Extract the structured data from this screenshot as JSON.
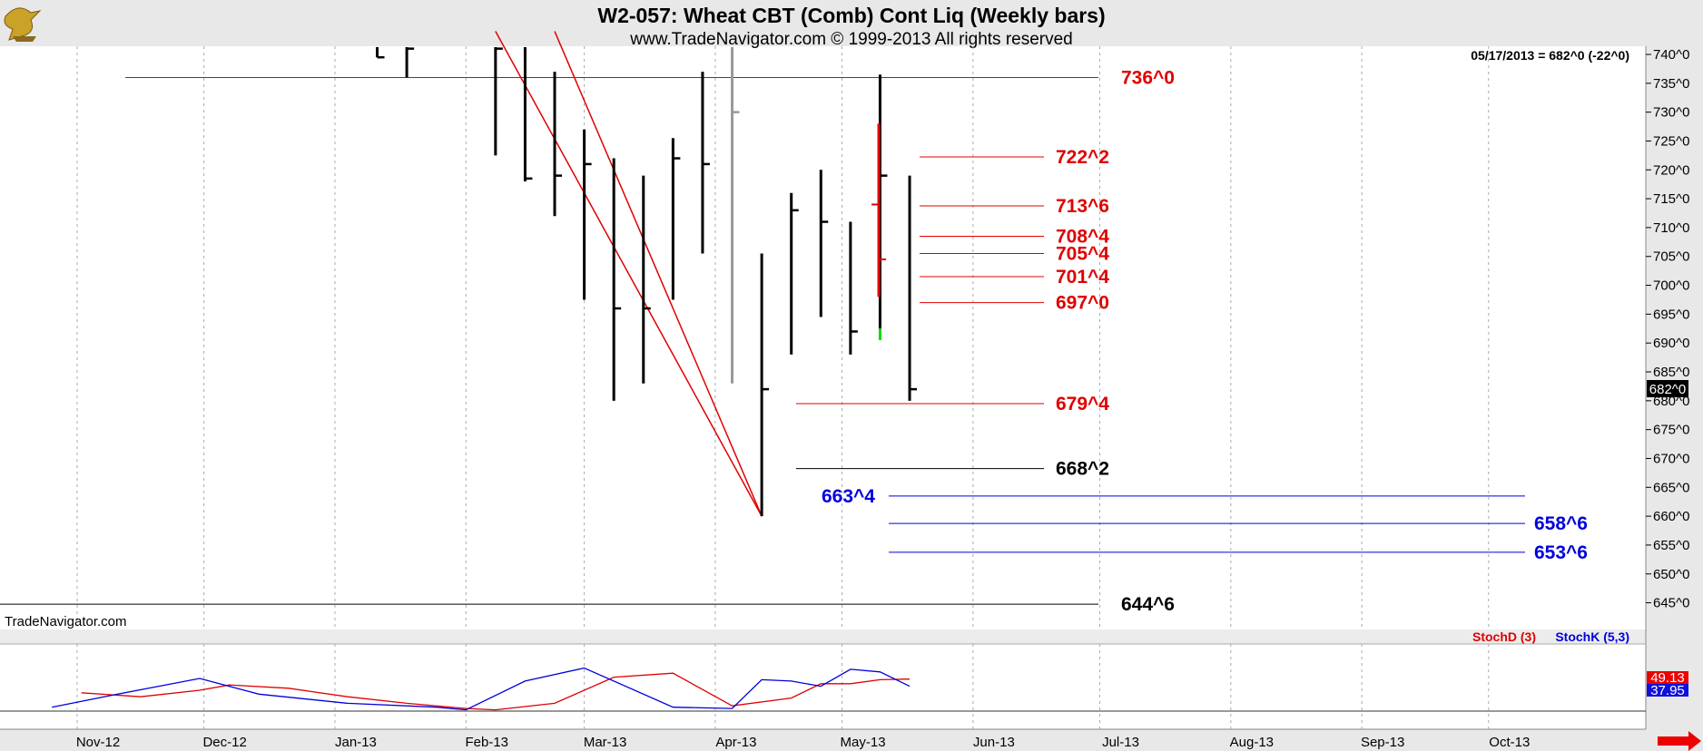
{
  "header": {
    "title": "W2-057:  Wheat CBT (Comb) Cont Liq  (Weekly bars)",
    "subtitle": "www.TradeNavigator.com © 1999-2013 All rights reserved"
  },
  "last_info": "05/17/2013 = 682^0 (-22^0)",
  "watermark": "TradeNavigator.com",
  "chart_data": [
    {
      "type": "ohlc-bar",
      "title": "W2-057:  Wheat CBT (Comb) Cont Liq  (Weekly bars)",
      "x_tick_labels": [
        "Nov-12",
        "Dec-12",
        "Jan-13",
        "Feb-13",
        "Mar-13",
        "Apr-13",
        "May-13",
        "Jun-13",
        "Jul-13",
        "Aug-13",
        "Sep-13",
        "Oct-13"
      ],
      "y_tick_labels": [
        "740^0",
        "735^0",
        "730^0",
        "725^0",
        "720^0",
        "715^0",
        "710^0",
        "705^0",
        "700^0",
        "695^0",
        "690^0",
        "685^0",
        "680^0",
        "675^0",
        "670^0",
        "665^0",
        "660^0",
        "655^0",
        "650^0",
        "645^0"
      ],
      "ylim": [
        642,
        744
      ],
      "price_label": "682^0",
      "bars": [
        {
          "week": "2013-01-11",
          "high": 746,
          "low": 739.5,
          "close": 739.5,
          "color": "#000"
        },
        {
          "week": "2013-01-18",
          "high": 744,
          "low": 736,
          "close": 741,
          "color": "#000"
        },
        {
          "week": "2013-02-08",
          "high": 743,
          "low": 722.5,
          "close": 741,
          "color": "#000"
        },
        {
          "week": "2013-02-15",
          "high": 742,
          "low": 718,
          "close": 718.5,
          "color": "#000"
        },
        {
          "week": "2013-02-22",
          "high": 737,
          "low": 712,
          "close": 719,
          "color": "#000"
        },
        {
          "week": "2013-03-01",
          "high": 727,
          "low": 697.5,
          "close": 721,
          "color": "#000"
        },
        {
          "week": "2013-03-08",
          "high": 722,
          "low": 680,
          "close": 696,
          "color": "#000"
        },
        {
          "week": "2013-03-15",
          "high": 719,
          "low": 683,
          "close": 696,
          "color": "#000"
        },
        {
          "week": "2013-03-22",
          "high": 725.5,
          "low": 697.5,
          "close": 722,
          "color": "#000"
        },
        {
          "week": "2013-03-29",
          "high": 737,
          "low": 705.5,
          "close": 721,
          "color": "#000"
        },
        {
          "week": "2013-04-05",
          "high": 745,
          "low": 683,
          "close": 730,
          "color": "#999"
        },
        {
          "week": "2013-04-12",
          "high": 705.5,
          "low": 660,
          "close": 682,
          "color": "#000"
        },
        {
          "week": "2013-04-19",
          "high": 716,
          "low": 688,
          "close": 713,
          "color": "#000"
        },
        {
          "week": "2013-04-26",
          "high": 720,
          "low": 694.5,
          "close": 711,
          "color": "#000"
        },
        {
          "week": "2013-05-03",
          "high": 711,
          "low": 688,
          "close": 692,
          "color": "#000"
        },
        {
          "week": "2013-05-10",
          "high": 736.5,
          "low": 692.5,
          "close": 719,
          "color": "#000"
        },
        {
          "week": "2013-05-17",
          "high": 719,
          "low": 680,
          "close": 682,
          "color": "#000"
        }
      ],
      "projected_bar": {
        "high": 728,
        "low": 698,
        "open": 714,
        "close": 704.5,
        "color": "#e00000"
      },
      "trendlines": [
        {
          "from": {
            "week": "2013-02-08",
            "price": 744
          },
          "to": {
            "week": "2013-04-12",
            "price": 660
          }
        },
        {
          "from": {
            "week": "2013-02-22",
            "price": 744
          },
          "to": {
            "week": "2013-04-12",
            "price": 660
          }
        }
      ],
      "levels": [
        {
          "label": "736^0",
          "price": 736,
          "color": "#e00000"
        },
        {
          "label": "722^2",
          "price": 722.25,
          "color": "#e00000"
        },
        {
          "label": "713^6",
          "price": 713.75,
          "color": "#e00000"
        },
        {
          "label": "708^4",
          "price": 708.5,
          "color": "#e00000"
        },
        {
          "label": "705^4",
          "price": 705.5,
          "color": "#e00000"
        },
        {
          "label": "701^4",
          "price": 701.5,
          "color": "#e00000"
        },
        {
          "label": "697^0",
          "price": 697,
          "color": "#e00000"
        },
        {
          "label": "679^4",
          "price": 679.5,
          "color": "#e00000"
        },
        {
          "label": "668^2",
          "price": 668.25,
          "color": "#000000"
        },
        {
          "label": "663^4",
          "price": 663.5,
          "color": "#0000dd"
        },
        {
          "label": "658^6",
          "price": 658.75,
          "color": "#0000dd"
        },
        {
          "label": "653^6",
          "price": 653.75,
          "color": "#0000dd"
        },
        {
          "label": "644^6",
          "price": 644.75,
          "color": "#000000"
        }
      ]
    },
    {
      "type": "line",
      "title": "",
      "legend": [
        "StochD (3)",
        "StochK (5,3)"
      ],
      "ylim": [
        0,
        100
      ],
      "series": [
        {
          "name": "StochD (3)",
          "color": "#e00000",
          "points": [
            [
              "2012-11-02",
              28
            ],
            [
              "2012-11-16",
              22
            ],
            [
              "2012-11-30",
              32
            ],
            [
              "2012-12-07",
              40
            ],
            [
              "2012-12-21",
              35
            ],
            [
              "2013-01-04",
              22
            ],
            [
              "2013-01-18",
              12
            ],
            [
              "2013-02-01",
              4
            ],
            [
              "2013-02-08",
              2
            ],
            [
              "2013-02-22",
              12
            ],
            [
              "2013-03-08",
              52
            ],
            [
              "2013-03-22",
              58
            ],
            [
              "2013-04-05",
              8
            ],
            [
              "2013-04-19",
              20
            ],
            [
              "2013-04-26",
              42
            ],
            [
              "2013-05-03",
              42
            ],
            [
              "2013-05-10",
              48
            ],
            [
              "2013-05-17",
              49
            ]
          ]
        },
        {
          "name": "StochK (5,3)",
          "color": "#0000dd",
          "points": [
            [
              "2012-10-26",
              6
            ],
            [
              "2012-11-09",
              24
            ],
            [
              "2012-11-30",
              50
            ],
            [
              "2012-12-14",
              26
            ],
            [
              "2013-01-04",
              12
            ],
            [
              "2013-01-25",
              6
            ],
            [
              "2013-02-01",
              2
            ],
            [
              "2013-02-15",
              46
            ],
            [
              "2013-03-01",
              66
            ],
            [
              "2013-03-22",
              6
            ],
            [
              "2013-04-05",
              4
            ],
            [
              "2013-04-12",
              48
            ],
            [
              "2013-04-19",
              46
            ],
            [
              "2013-04-26",
              38
            ],
            [
              "2013-05-03",
              64
            ],
            [
              "2013-05-10",
              60
            ],
            [
              "2013-05-17",
              38
            ]
          ]
        }
      ],
      "labels": {
        "stoch_d": "49.13",
        "stoch_k": "37.95"
      }
    }
  ]
}
